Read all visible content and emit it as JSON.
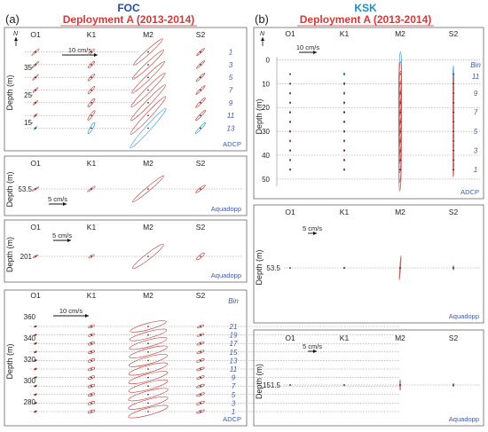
{
  "figure": {
    "panel_a": {
      "letter": "(a)",
      "site": "FOC",
      "deployment": "Deployment A (2013-2014)"
    },
    "panel_b": {
      "letter": "(b)",
      "site": "KSK",
      "deployment": "Deployment A (2013-2014)"
    }
  },
  "chart_data": [
    {
      "id": "a1",
      "type": "scatter",
      "site": "FOC",
      "instrument": "ADCP",
      "ylabel": "Depth (m)",
      "north": "N",
      "scale_label": "10 cm/s",
      "scale_speed": 10,
      "columns": [
        "O1",
        "K1",
        "M2",
        "S2"
      ],
      "ylim": [
        44,
        8
      ],
      "yticks": [
        15,
        25,
        35
      ],
      "bins": [
        {
          "bin": "13",
          "depth": 13
        },
        {
          "bin": "11",
          "depth": 17.6
        },
        {
          "bin": "9",
          "depth": 22.2
        },
        {
          "bin": "7",
          "depth": 26.8
        },
        {
          "bin": "5",
          "depth": 31.4
        },
        {
          "bin": "3",
          "depth": 36
        },
        {
          "bin": "1",
          "depth": 40.6
        }
      ],
      "ellipses": {
        "O1": {
          "major": [
            1.2,
            1.5,
            1.8,
            2.0,
            2.3,
            2.6,
            2.8
          ],
          "minor": [
            0.3,
            0.3,
            0.3,
            0.35,
            0.35,
            0.35,
            0.4
          ],
          "angle": [
            48,
            46,
            45,
            44,
            44,
            43,
            42
          ]
        },
        "K1": {
          "major": [
            3.6,
            3.3,
            3.0,
            2.8,
            2.7,
            2.5,
            2.4
          ],
          "minor": [
            0.8,
            0.7,
            0.7,
            0.6,
            0.6,
            0.6,
            0.5
          ],
          "angle": [
            60,
            54,
            50,
            47,
            46,
            45,
            44
          ]
        },
        "M2": {
          "major": [
            15,
            14.5,
            14,
            13.5,
            12.8,
            12,
            11
          ],
          "minor": [
            1.5,
            1.5,
            1.4,
            1.4,
            1.3,
            1.3,
            1.2
          ],
          "angle": [
            48,
            47,
            46,
            45,
            44,
            43,
            42
          ]
        },
        "S2": {
          "major": [
            4.2,
            4.0,
            3.8,
            3.6,
            3.4,
            3.2,
            3.0
          ],
          "minor": [
            0.6,
            0.6,
            0.6,
            0.5,
            0.5,
            0.5,
            0.5
          ],
          "angle": [
            47,
            46,
            45,
            44,
            43,
            43,
            42
          ]
        }
      },
      "top_bin_color": "#3fa0cf"
    },
    {
      "id": "a2",
      "type": "scatter",
      "site": "FOC",
      "instrument": "Aquadopp",
      "ylabel": "Depth (m)",
      "scale_label": "5 cm/s",
      "scale_speed": 5,
      "columns": [
        "O1",
        "K1",
        "M2",
        "S2"
      ],
      "depth": 53.5,
      "ytick": "53.5",
      "ellipses": {
        "O1": {
          "major": 2.2,
          "minor": 0.3,
          "angle": 30
        },
        "K1": {
          "major": 2.7,
          "minor": 0.4,
          "angle": 35
        },
        "M2": {
          "major": 11.5,
          "minor": 1.1,
          "angle": 40
        },
        "S2": {
          "major": 3.4,
          "minor": 0.6,
          "angle": 38
        }
      }
    },
    {
      "id": "a3",
      "type": "scatter",
      "site": "FOC",
      "instrument": "Aquadopp",
      "ylabel": "Depth (m)",
      "scale_label": "5 cm/s",
      "scale_speed": 5,
      "columns": [
        "O1",
        "K1",
        "M2",
        "S2"
      ],
      "depth": 201,
      "ytick": "201",
      "ellipses": {
        "O1": {
          "major": 1.6,
          "minor": 0.3,
          "angle": 28
        },
        "K1": {
          "major": 1.8,
          "minor": 0.5,
          "angle": 30
        },
        "M2": {
          "major": 11,
          "minor": 1.6,
          "angle": 38
        },
        "S2": {
          "major": 2.8,
          "minor": 0.8,
          "angle": 40
        }
      }
    },
    {
      "id": "a4",
      "type": "scatter",
      "site": "FOC",
      "instrument": "ADCP",
      "ylabel": "Depth (m)",
      "scale_label": "10 cm/s",
      "scale_speed": 10,
      "columns": [
        "O1",
        "K1",
        "M2",
        "S2"
      ],
      "ylim": [
        366,
        266
      ],
      "yticks": [
        280,
        300,
        320,
        340,
        360
      ],
      "bin_header": "Bin",
      "bins": [
        {
          "bin": "1",
          "depth": 271
        },
        {
          "bin": "3",
          "depth": 279
        },
        {
          "bin": "5",
          "depth": 287
        },
        {
          "bin": "7",
          "depth": 295
        },
        {
          "bin": "9",
          "depth": 303
        },
        {
          "bin": "11",
          "depth": 311
        },
        {
          "bin": "13",
          "depth": 319
        },
        {
          "bin": "15",
          "depth": 327
        },
        {
          "bin": "17",
          "depth": 335
        },
        {
          "bin": "19",
          "depth": 343
        },
        {
          "bin": "21",
          "depth": 351
        }
      ],
      "ellipses": {
        "O1": {
          "major": [
            0.9,
            0.9,
            0.9,
            0.9,
            0.9,
            0.9,
            0.9,
            0.9,
            0.9,
            0.8,
            0.8
          ],
          "minor": [
            0.35,
            0.35,
            0.35,
            0.35,
            0.35,
            0.35,
            0.35,
            0.35,
            0.35,
            0.3,
            0.3
          ],
          "angle": [
            25,
            25,
            25,
            25,
            25,
            25,
            25,
            25,
            25,
            25,
            25
          ]
        },
        "K1": {
          "major": [
            2.0,
            2.0,
            2.0,
            2.0,
            2.0,
            2.0,
            2.0,
            1.9,
            1.9,
            1.8,
            1.8
          ],
          "minor": [
            0.7,
            0.7,
            0.7,
            0.7,
            0.7,
            0.7,
            0.7,
            0.7,
            0.7,
            0.6,
            0.6
          ],
          "angle": [
            20,
            20,
            20,
            20,
            20,
            20,
            20,
            20,
            20,
            20,
            20
          ]
        },
        "M2": {
          "major": [
            11.5,
            11.5,
            11.5,
            11.4,
            11.4,
            11.3,
            11.2,
            11.1,
            11,
            10.8,
            10.5
          ],
          "minor": [
            2.0,
            2.0,
            2.0,
            2.0,
            2.0,
            2.0,
            2.0,
            1.9,
            1.9,
            1.8,
            1.8
          ],
          "angle": [
            15,
            15,
            15,
            15,
            15,
            15,
            15,
            15,
            15,
            15,
            15
          ]
        },
        "S2": {
          "major": [
            2.4,
            2.4,
            2.4,
            2.4,
            2.3,
            2.3,
            2.3,
            2.2,
            2.2,
            2.1,
            2.0
          ],
          "minor": [
            0.6,
            0.6,
            0.6,
            0.6,
            0.6,
            0.6,
            0.6,
            0.6,
            0.6,
            0.5,
            0.5
          ],
          "angle": [
            20,
            20,
            20,
            20,
            20,
            20,
            20,
            20,
            20,
            20,
            20
          ]
        }
      }
    },
    {
      "id": "b1",
      "type": "scatter",
      "site": "KSK",
      "instrument": "ADCP",
      "ylabel": "Depth (m)",
      "north": "N",
      "scale_label": "10 cm/s",
      "scale_speed": 10,
      "columns": [
        "O1",
        "K1",
        "M2",
        "S2"
      ],
      "ylim": [
        -2,
        53
      ],
      "yticks": [
        0,
        10,
        20,
        30,
        40,
        50
      ],
      "bin_header": "Bin",
      "bin_labels": [
        {
          "bin": "11",
          "depth": 7
        },
        {
          "bin": "9",
          "depth": 14
        },
        {
          "bin": "7",
          "depth": 22
        },
        {
          "bin": "5",
          "depth": 30
        },
        {
          "bin": "3",
          "depth": 38
        },
        {
          "bin": "1",
          "depth": 46
        }
      ],
      "ellipse_depths": [
        6,
        10,
        14,
        18,
        22,
        26,
        30,
        34,
        38,
        42,
        46
      ],
      "ellipses": {
        "O1": {
          "major": [
            1.0,
            1.1,
            1.2,
            1.2,
            1.3,
            1.3,
            1.3,
            1.3,
            1.3,
            1.2,
            1.2
          ],
          "minor": [
            0.15,
            0.15,
            0.15,
            0.15,
            0.15,
            0.15,
            0.15,
            0.15,
            0.15,
            0.15,
            0.15
          ],
          "angle": [
            88,
            88,
            88,
            88,
            88,
            88,
            88,
            88,
            88,
            88,
            88
          ]
        },
        "K1": {
          "major": [
            1.7,
            1.6,
            1.6,
            1.5,
            1.5,
            1.5,
            1.5,
            1.4,
            1.4,
            1.3,
            1.3
          ],
          "minor": [
            0.35,
            0.3,
            0.3,
            0.3,
            0.3,
            0.3,
            0.3,
            0.3,
            0.3,
            0.3,
            0.3
          ],
          "angle": [
            88,
            88,
            88,
            88,
            88,
            88,
            88,
            88,
            88,
            88,
            88
          ]
        },
        "M2": {
          "major": [
            25,
            25,
            25,
            25,
            25,
            25,
            25,
            25,
            25,
            25,
            24
          ],
          "minor": [
            1.4,
            1.4,
            1.4,
            1.4,
            1.4,
            1.4,
            1.4,
            1.3,
            1.3,
            1.3,
            1.2
          ],
          "angle": [
            89,
            89,
            89,
            89,
            89,
            89,
            89,
            89,
            89,
            89,
            89
          ]
        },
        "S2": {
          "major": [
            9.5,
            9.4,
            9.3,
            9.2,
            9.1,
            9.0,
            8.9,
            8.8,
            8.6,
            8.4,
            8.2
          ],
          "minor": [
            0.5,
            0.5,
            0.5,
            0.5,
            0.5,
            0.5,
            0.5,
            0.5,
            0.5,
            0.5,
            0.5
          ],
          "angle": [
            89,
            89,
            89,
            89,
            89,
            89,
            89,
            89,
            89,
            89,
            89
          ]
        }
      },
      "top_bin_color": "#3fa0cf"
    },
    {
      "id": "b2",
      "type": "scatter",
      "site": "KSK",
      "instrument": "Aquadopp",
      "ylabel": "Depth (m)",
      "scale_label": "5 cm/s",
      "scale_speed": 5,
      "columns": [
        "O1",
        "K1",
        "M2",
        "S2"
      ],
      "depth": 53.5,
      "ytick": "53.5",
      "ellipses": {
        "O1": {
          "major": 0.3,
          "minor": 0.1,
          "angle": 90
        },
        "K1": {
          "major": 1.1,
          "minor": 0.1,
          "angle": 90
        },
        "M2": {
          "major": 14,
          "minor": 0.3,
          "angle": 86
        },
        "S2": {
          "major": 2.4,
          "minor": 0.4,
          "angle": 90
        }
      }
    },
    {
      "id": "b3",
      "type": "scatter",
      "site": "KSK",
      "instrument": "Aquadopp",
      "ylabel": "Depth (m)",
      "scale_label": "5 cm/s",
      "scale_speed": 5,
      "columns": [
        "O1",
        "K1",
        "M2",
        "S2"
      ],
      "depth": 151.5,
      "ytick": "151.5",
      "ellipses": {
        "O1": {
          "major": 0.4,
          "minor": 0.1,
          "angle": 90
        },
        "K1": {
          "major": 0.6,
          "minor": 0.1,
          "angle": 90
        },
        "M2": {
          "major": 6.2,
          "minor": 0.3,
          "angle": 90
        },
        "S2": {
          "major": 1.9,
          "minor": 0.3,
          "angle": 90
        }
      }
    }
  ]
}
